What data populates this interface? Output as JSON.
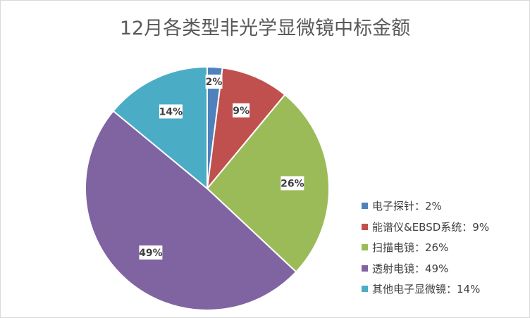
{
  "chart_data": {
    "type": "pie",
    "title": "12月各类型非光学显微镜中标金额",
    "categories": [
      "电子探针",
      "能谱仪&EBSD系统",
      "扫描电镜",
      "透射电镜",
      "其他电子显微镜"
    ],
    "values": [
      2,
      9,
      26,
      49,
      14
    ],
    "data_labels": [
      "2%",
      "9%",
      "26%",
      "49%",
      "14%"
    ],
    "legend_labels": [
      "电子探针：2%",
      "能谱仪&EBSD系统：9%",
      "扫描电镜：26%",
      "透射电镜：49%",
      "其他电子显微镜：14%"
    ],
    "colors": [
      "#4F81BD",
      "#C0504D",
      "#9BBB59",
      "#8064A2",
      "#4BACC6"
    ],
    "legend_position": "right"
  }
}
